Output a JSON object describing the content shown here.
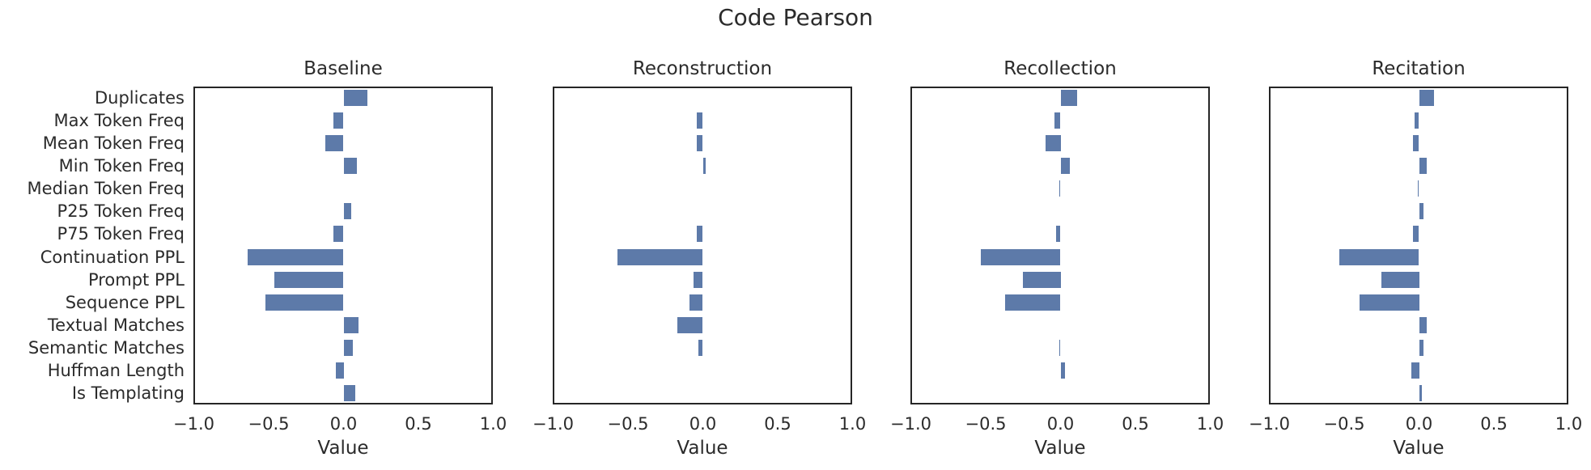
{
  "chart_data": {
    "type": "bar",
    "orientation": "horizontal",
    "title": "Code Pearson",
    "xlabel": "Value",
    "xlim": [
      -1.0,
      1.0
    ],
    "xticks": [
      -1.0,
      -0.5,
      0.0,
      0.5,
      1.0
    ],
    "xtick_labels": [
      "−1.0",
      "−0.5",
      "0.0",
      "0.5",
      "1.0"
    ],
    "grid": false,
    "legend": false,
    "bar_color": "#5d7aa9",
    "spine_color": "#262626",
    "text_color": "#2b2b2b",
    "categories": [
      "Duplicates",
      "Max Token Freq",
      "Mean Token Freq",
      "Min Token Freq",
      "Median Token Freq",
      "P25 Token Freq",
      "P75 Token Freq",
      "Continuation PPL",
      "Prompt PPL",
      "Sequence PPL",
      "Textual Matches",
      "Semantic Matches",
      "Huffman Length",
      "Is Templating"
    ],
    "series": [
      {
        "name": "Baseline",
        "values": [
          0.16,
          -0.07,
          -0.12,
          0.09,
          0.0,
          0.05,
          -0.07,
          -0.64,
          -0.46,
          -0.52,
          0.1,
          0.06,
          -0.05,
          0.08
        ]
      },
      {
        "name": "Reconstruction",
        "values": [
          0.0,
          -0.04,
          -0.04,
          0.02,
          0.0,
          0.0,
          -0.04,
          -0.57,
          -0.06,
          -0.09,
          -0.17,
          -0.03,
          0.0,
          0.0
        ]
      },
      {
        "name": "Recollection",
        "values": [
          0.11,
          -0.04,
          -0.1,
          0.06,
          -0.01,
          0.0,
          -0.03,
          -0.53,
          -0.25,
          -0.37,
          0.0,
          -0.01,
          0.03,
          0.0
        ]
      },
      {
        "name": "Recitation",
        "values": [
          0.1,
          -0.03,
          -0.04,
          0.05,
          -0.01,
          0.03,
          -0.04,
          -0.53,
          -0.25,
          -0.4,
          0.05,
          0.03,
          -0.05,
          0.02
        ]
      }
    ]
  }
}
